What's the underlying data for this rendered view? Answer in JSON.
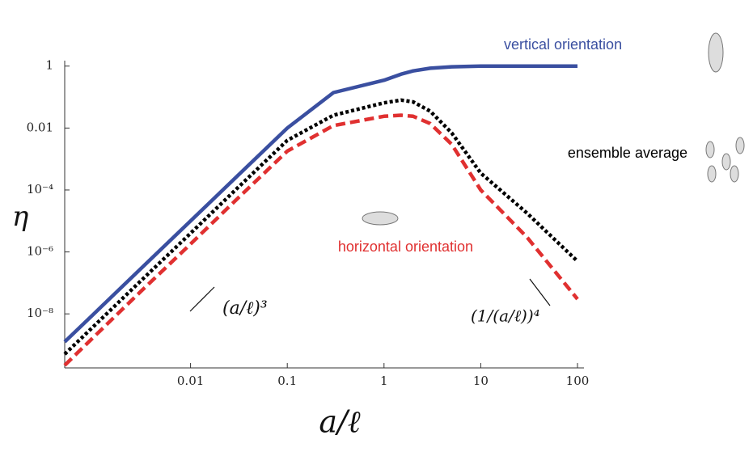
{
  "chart_data": {
    "type": "line",
    "x_label": "a/ℓ",
    "y_label": "η",
    "log_x": true,
    "log_y": true,
    "xlim": [
      0.0005,
      100
    ],
    "ylim": [
      1.8e-10,
      1.5
    ],
    "xticks": [
      0.01,
      0.1,
      1,
      10,
      100
    ],
    "yticks": [
      1,
      0.01,
      {
        "value": 0.0001,
        "label": "10⁻⁴"
      },
      {
        "value": 1e-06,
        "label": "10⁻⁶"
      },
      {
        "value": 1e-08,
        "label": "10⁻⁸"
      }
    ],
    "x": [
      0.0005,
      0.001,
      0.003,
      0.01,
      0.03,
      0.1,
      0.3,
      1,
      1.5,
      2,
      3,
      5,
      10,
      30,
      100
    ],
    "series": [
      {
        "name": "vertical orientation",
        "color": "#3a4fa0",
        "style": "solid",
        "values": [
          1.25e-09,
          1e-08,
          2.7e-07,
          1e-05,
          0.00027,
          0.01,
          0.14,
          0.35,
          0.55,
          0.7,
          0.85,
          0.95,
          1,
          1,
          1
        ]
      },
      {
        "name": "ensemble average",
        "color": "#000000",
        "style": "dotted",
        "values": [
          5e-10,
          4e-09,
          1.1e-07,
          4e-06,
          0.00011,
          0.004,
          0.026,
          0.065,
          0.08,
          0.07,
          0.035,
          0.007,
          0.00035,
          1.8e-05,
          5e-07
        ]
      },
      {
        "name": "horizontal orientation",
        "color": "#e03030",
        "style": "dashed",
        "values": [
          2.2e-10,
          1.8e-09,
          5e-08,
          1.8e-06,
          5e-05,
          0.0018,
          0.012,
          0.024,
          0.026,
          0.024,
          0.014,
          0.003,
          0.0001,
          3e-06,
          3e-08
        ]
      }
    ],
    "annotations": [
      "(a/ℓ)³",
      "(1/(a/ℓ))⁴"
    ]
  }
}
